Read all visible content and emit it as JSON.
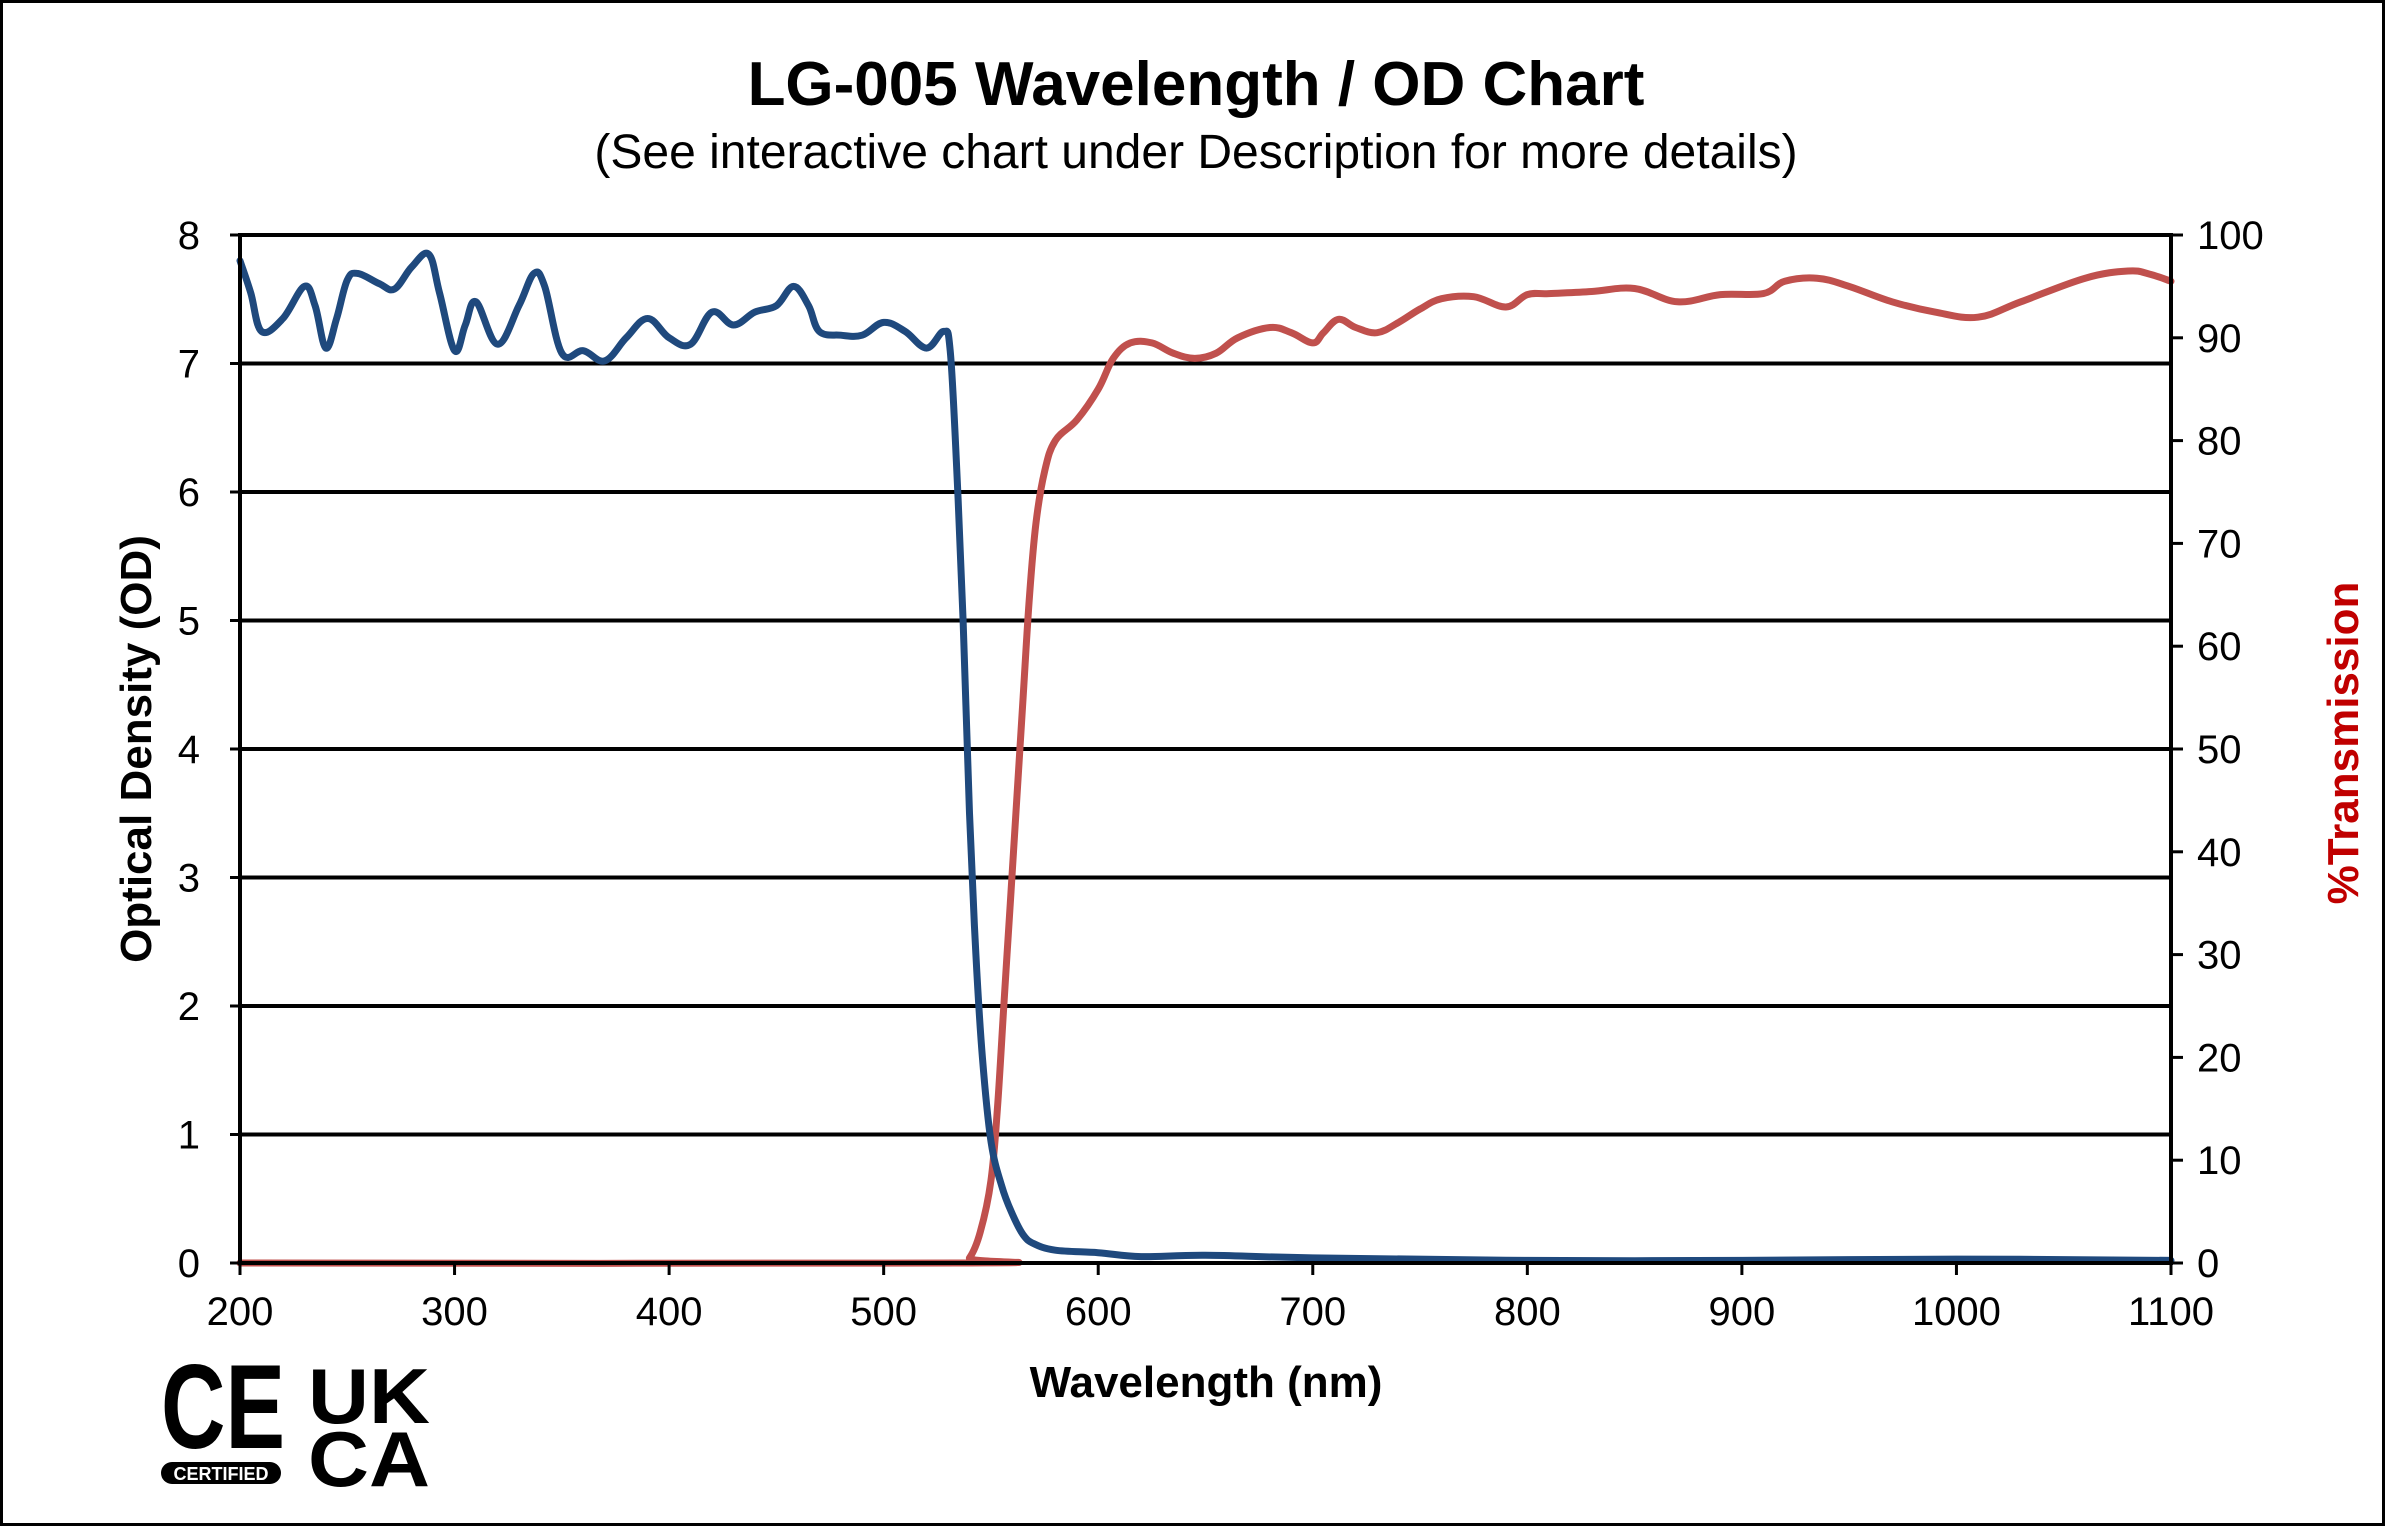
{
  "chart_data": {
    "type": "line",
    "title": "LG-005 Wavelength / OD Chart",
    "subtitle": "(See interactive chart under Description for more details)",
    "xlabel": "Wavelength (nm)",
    "ylabel": "Optical Density (OD)",
    "y2label": "%Transmission",
    "xlim": [
      200,
      1100
    ],
    "ylim": [
      0,
      8
    ],
    "y2lim": [
      0,
      100
    ],
    "x_ticks": [
      "200",
      "300",
      "400",
      "500",
      "600",
      "700",
      "800",
      "900",
      "1000",
      "1100"
    ],
    "y_ticks": [
      "0",
      "1",
      "2",
      "3",
      "4",
      "5",
      "6",
      "7",
      "8"
    ],
    "y2_ticks": [
      "0",
      "10",
      "20",
      "30",
      "40",
      "50",
      "60",
      "70",
      "80",
      "90",
      "100"
    ],
    "grid": "horizontal",
    "series": [
      {
        "name": "Optical Density",
        "axis": "left",
        "color": "#1f497d",
        "points": [
          [
            200,
            7.8
          ],
          [
            205,
            7.55
          ],
          [
            210,
            7.25
          ],
          [
            220,
            7.35
          ],
          [
            230,
            7.6
          ],
          [
            235,
            7.45
          ],
          [
            240,
            7.12
          ],
          [
            245,
            7.35
          ],
          [
            250,
            7.65
          ],
          [
            255,
            7.7
          ],
          [
            265,
            7.62
          ],
          [
            272,
            7.58
          ],
          [
            280,
            7.75
          ],
          [
            288,
            7.85
          ],
          [
            293,
            7.55
          ],
          [
            300,
            7.1
          ],
          [
            305,
            7.3
          ],
          [
            310,
            7.48
          ],
          [
            320,
            7.15
          ],
          [
            330,
            7.45
          ],
          [
            337,
            7.7
          ],
          [
            342,
            7.6
          ],
          [
            350,
            7.08
          ],
          [
            360,
            7.1
          ],
          [
            370,
            7.02
          ],
          [
            380,
            7.2
          ],
          [
            390,
            7.35
          ],
          [
            400,
            7.2
          ],
          [
            410,
            7.15
          ],
          [
            420,
            7.4
          ],
          [
            430,
            7.3
          ],
          [
            440,
            7.4
          ],
          [
            450,
            7.45
          ],
          [
            458,
            7.6
          ],
          [
            465,
            7.45
          ],
          [
            470,
            7.25
          ],
          [
            480,
            7.22
          ],
          [
            490,
            7.22
          ],
          [
            500,
            7.32
          ],
          [
            510,
            7.25
          ],
          [
            520,
            7.12
          ],
          [
            528,
            7.25
          ],
          [
            531,
            7.1
          ],
          [
            534,
            6.2
          ],
          [
            537,
            5.0
          ],
          [
            540,
            3.5
          ],
          [
            543,
            2.4
          ],
          [
            546,
            1.6
          ],
          [
            550,
            0.95
          ],
          [
            555,
            0.6
          ],
          [
            560,
            0.38
          ],
          [
            565,
            0.22
          ],
          [
            570,
            0.15
          ],
          [
            580,
            0.1
          ],
          [
            600,
            0.08
          ],
          [
            620,
            0.05
          ],
          [
            650,
            0.06
          ],
          [
            700,
            0.04
          ],
          [
            800,
            0.02
          ],
          [
            900,
            0.02
          ],
          [
            1000,
            0.03
          ],
          [
            1100,
            0.02
          ]
        ]
      },
      {
        "name": "%Transmission",
        "axis": "right",
        "color": "#c0504d",
        "points": [
          [
            200,
            0
          ],
          [
            535,
            0
          ],
          [
            540,
            0.5
          ],
          [
            545,
            3
          ],
          [
            550,
            8
          ],
          [
            553,
            15
          ],
          [
            556,
            25
          ],
          [
            559,
            35
          ],
          [
            562,
            45
          ],
          [
            565,
            55
          ],
          [
            568,
            65
          ],
          [
            571,
            72
          ],
          [
            575,
            77
          ],
          [
            580,
            80
          ],
          [
            590,
            82
          ],
          [
            600,
            85
          ],
          [
            607,
            88
          ],
          [
            615,
            89.5
          ],
          [
            625,
            89.5
          ],
          [
            635,
            88.5
          ],
          [
            645,
            88
          ],
          [
            655,
            88.5
          ],
          [
            665,
            90
          ],
          [
            680,
            91
          ],
          [
            690,
            90.5
          ],
          [
            700,
            89.5
          ],
          [
            705,
            90.5
          ],
          [
            712,
            91.8
          ],
          [
            720,
            91
          ],
          [
            730,
            90.5
          ],
          [
            740,
            91.5
          ],
          [
            750,
            92.8
          ],
          [
            760,
            93.8
          ],
          [
            775,
            94
          ],
          [
            790,
            93
          ],
          [
            800,
            94.2
          ],
          [
            810,
            94.3
          ],
          [
            830,
            94.5
          ],
          [
            850,
            94.8
          ],
          [
            870,
            93.5
          ],
          [
            890,
            94.2
          ],
          [
            910,
            94.3
          ],
          [
            920,
            95.5
          ],
          [
            935,
            95.8
          ],
          [
            950,
            95
          ],
          [
            970,
            93.5
          ],
          [
            990,
            92.5
          ],
          [
            1010,
            92
          ],
          [
            1030,
            93.5
          ],
          [
            1060,
            95.8
          ],
          [
            1080,
            96.5
          ],
          [
            1090,
            96.2
          ],
          [
            1100,
            95.5
          ]
        ]
      }
    ]
  },
  "logos": {
    "ce_mark": "CE",
    "ce_badge_text": "CERTIFIED",
    "ukca_line1": "UK",
    "ukca_line2": "CA"
  }
}
